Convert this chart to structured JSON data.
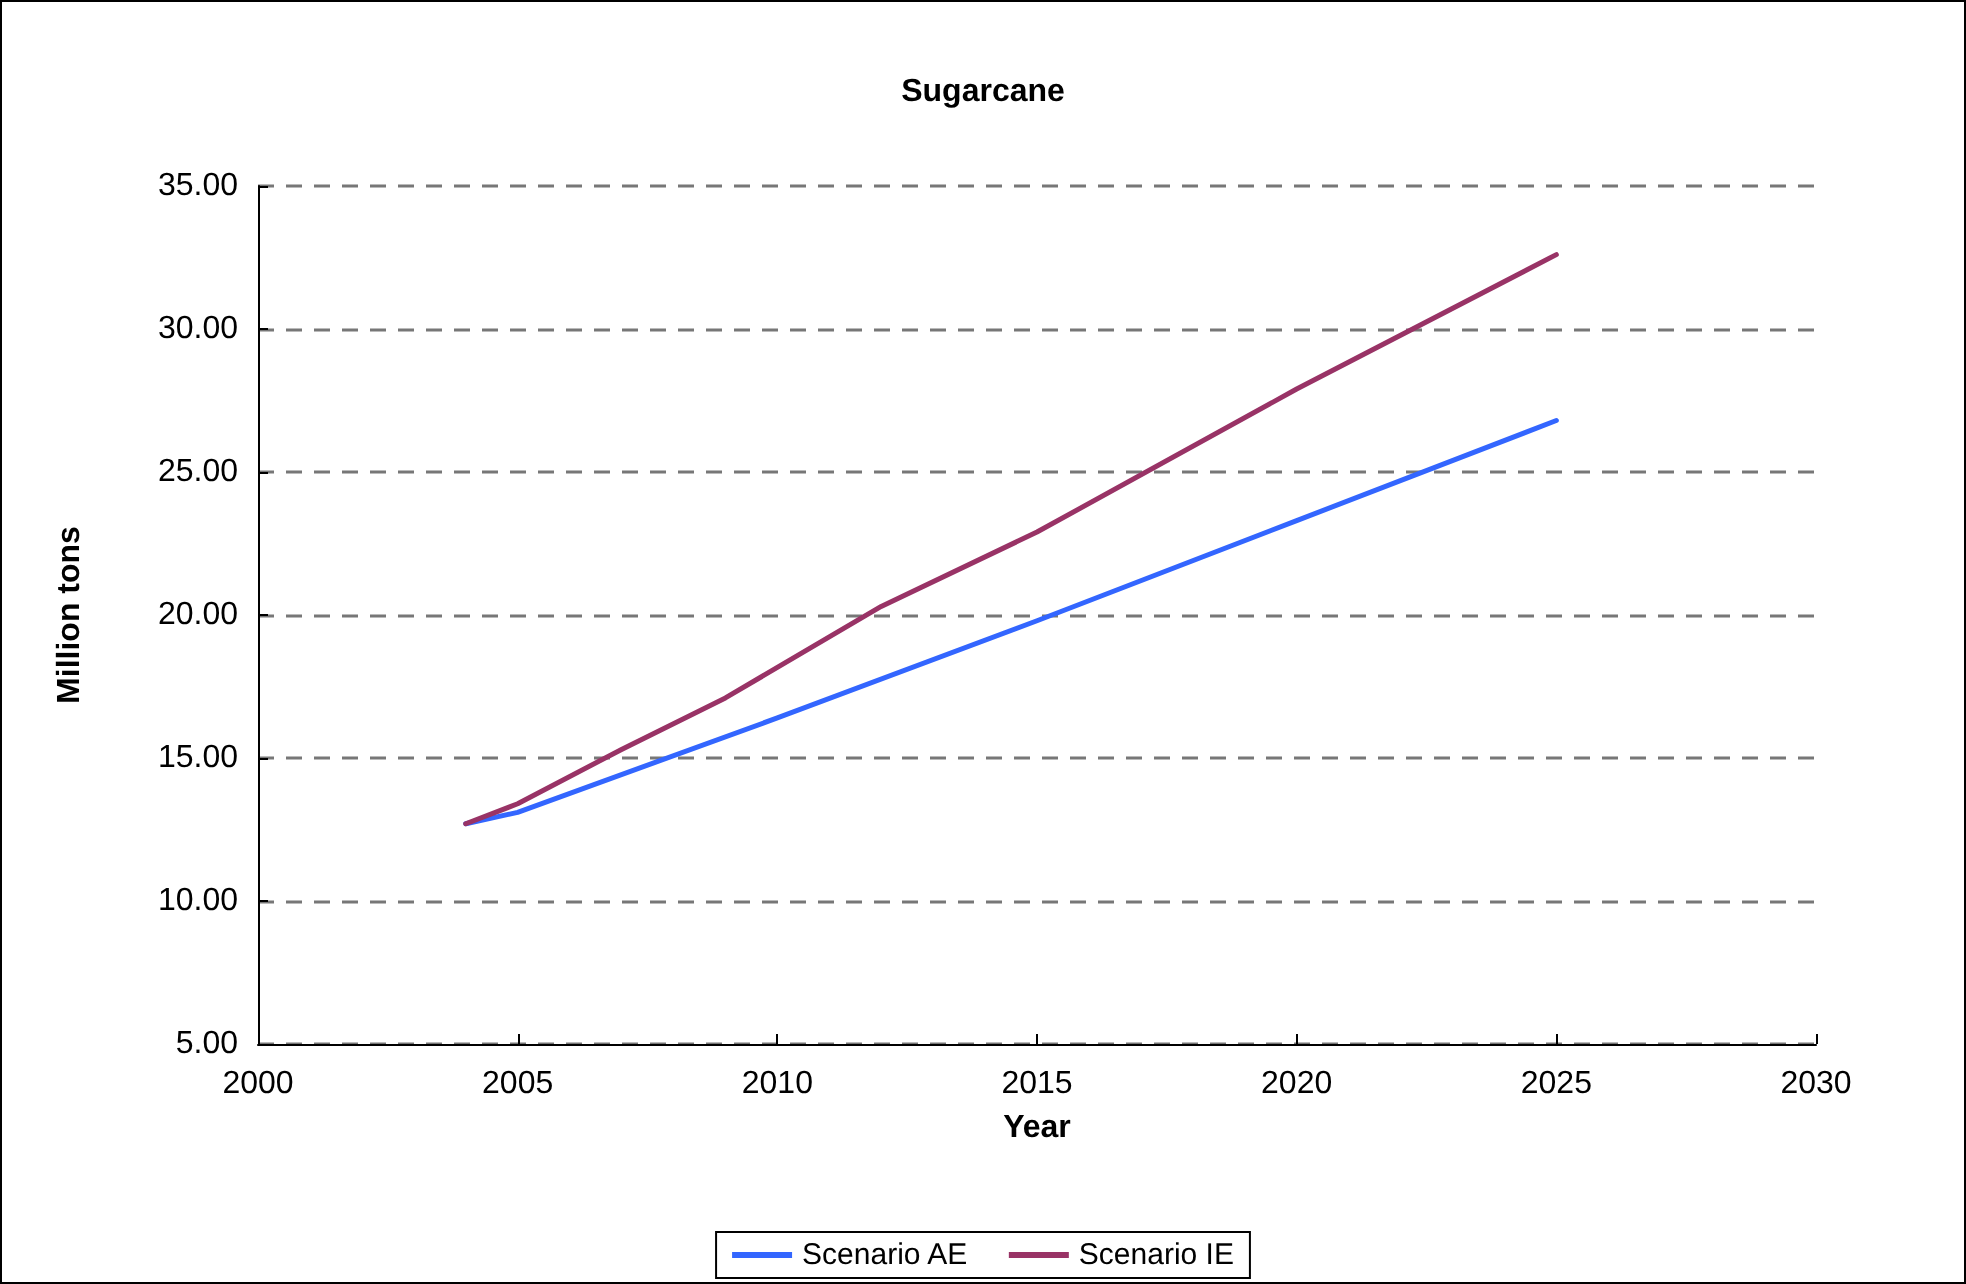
{
  "chart_data": {
    "type": "line",
    "title": "Sugarcane",
    "xlabel": "Year",
    "ylabel": "Million tons",
    "xlim": [
      2000,
      2030
    ],
    "xticks": [
      2000,
      2005,
      2010,
      2015,
      2020,
      2025,
      2030
    ],
    "ylim": [
      5,
      35
    ],
    "yticks": [
      {
        "value": 5,
        "label": "5.00"
      },
      {
        "value": 10,
        "label": "10.00"
      },
      {
        "value": 15,
        "label": "15.00"
      },
      {
        "value": 20,
        "label": "20.00"
      },
      {
        "value": 25,
        "label": "25.00"
      },
      {
        "value": 30,
        "label": "30.00"
      },
      {
        "value": 35,
        "label": "35.00"
      }
    ],
    "grid": "y",
    "legend": "bottom",
    "marker": "none",
    "line_style": "solid",
    "series": [
      {
        "name": "Scenario AE",
        "color": "#3366ff",
        "x": [
          2004,
          2005,
          2010,
          2015,
          2020,
          2025
        ],
        "values": [
          12.7,
          13.1,
          16.4,
          19.8,
          23.3,
          26.8
        ]
      },
      {
        "name": "Scenario IE",
        "color": "#993366",
        "x": [
          2004,
          2005,
          2007,
          2009,
          2012,
          2015,
          2020,
          2025
        ],
        "values": [
          12.7,
          13.4,
          15.3,
          17.1,
          20.3,
          22.9,
          27.9,
          32.6
        ]
      }
    ]
  }
}
